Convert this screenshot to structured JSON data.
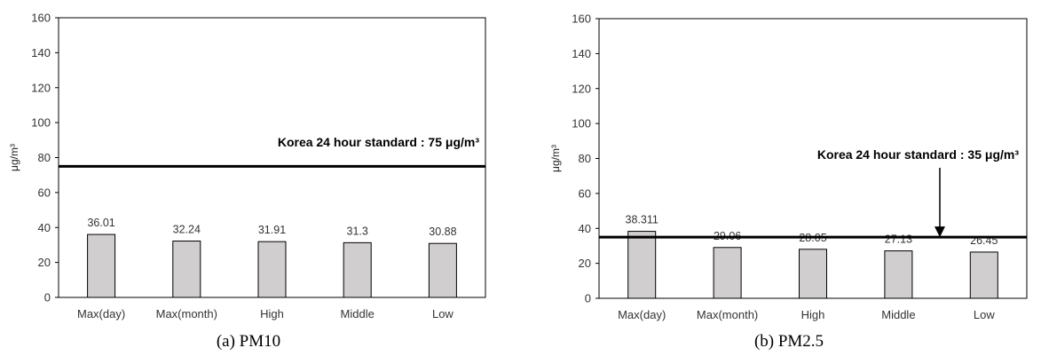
{
  "chart_data": [
    {
      "type": "bar",
      "panel": "a",
      "caption": "(a)  PM10",
      "categories": [
        "Max(day)",
        "Max(month)",
        "High",
        "Middle",
        "Low"
      ],
      "values": [
        36.01,
        32.24,
        31.91,
        31.3,
        30.88
      ],
      "data_labels": [
        "36.01",
        "32.24",
        "31.91",
        "31.3",
        "30.88"
      ],
      "ylabel": "μg/m³",
      "ylim": [
        0,
        160
      ],
      "yticks": [
        0,
        20,
        40,
        60,
        80,
        100,
        120,
        140,
        160
      ],
      "bar_color": "#d0cece",
      "standard": {
        "value": 75,
        "label": "Korea 24 hour standard : 75 μg/m³",
        "arrow": false
      }
    },
    {
      "type": "bar",
      "panel": "b",
      "caption": "(b)  PM2.5",
      "categories": [
        "Max(day)",
        "Max(month)",
        "High",
        "Middle",
        "Low"
      ],
      "values": [
        38.311,
        29.06,
        28.05,
        27.13,
        26.45
      ],
      "data_labels": [
        "38.311",
        "29.06",
        "28.05",
        "27.13",
        "26.45"
      ],
      "ylabel": "μg/m³",
      "ylim": [
        0,
        160
      ],
      "yticks": [
        0,
        20,
        40,
        60,
        80,
        100,
        120,
        140,
        160
      ],
      "bar_color": "#d0cece",
      "standard": {
        "value": 35,
        "label": "Korea 24 hour standard : 35 μg/m³",
        "arrow": true
      }
    }
  ]
}
